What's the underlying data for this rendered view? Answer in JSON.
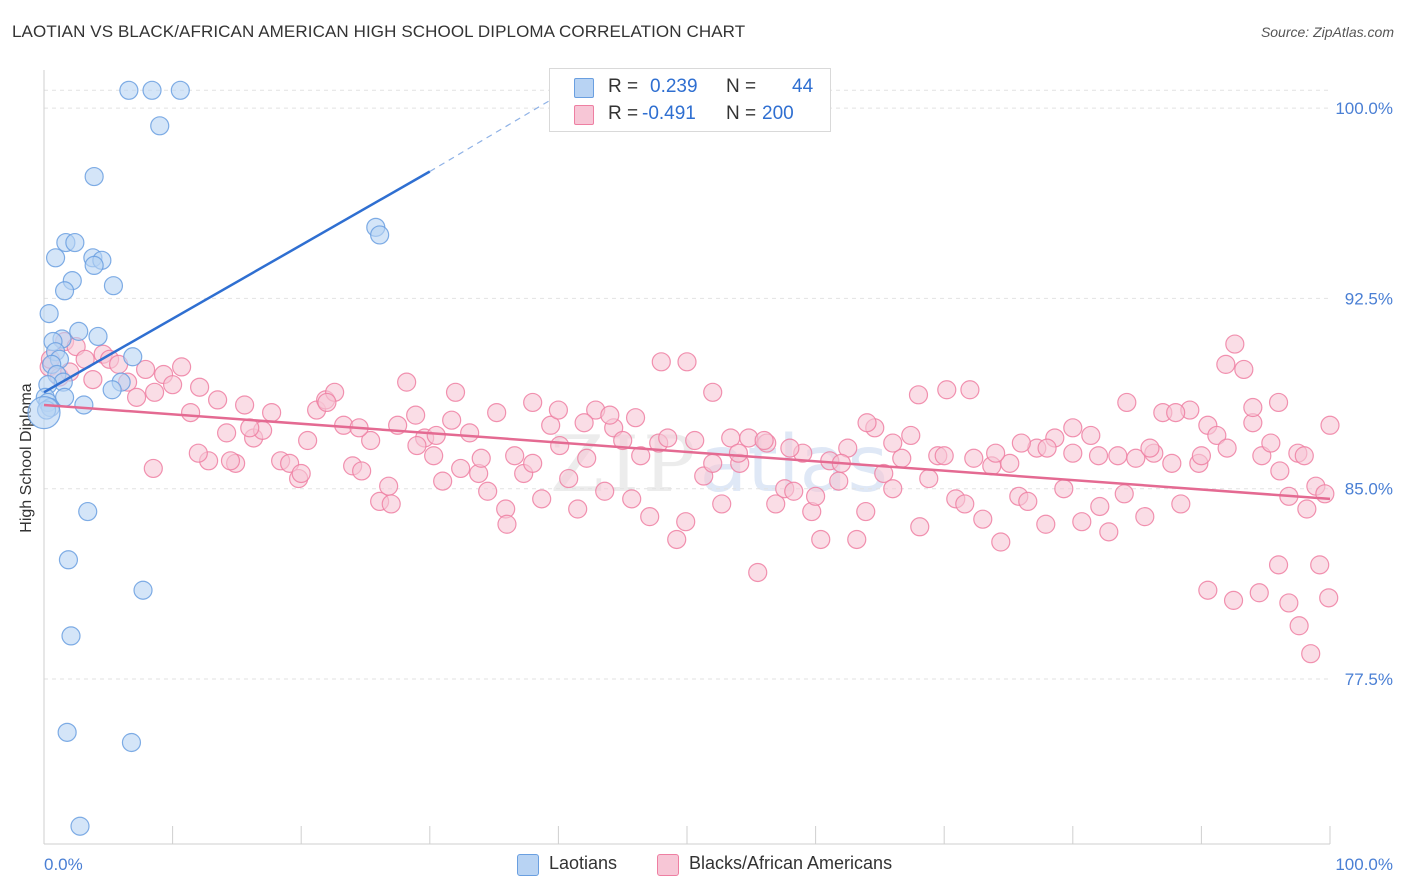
{
  "title": "LAOTIAN VS BLACK/AFRICAN AMERICAN HIGH SCHOOL DIPLOMA CORRELATION CHART",
  "source": "Source: ZipAtlas.com",
  "watermark": {
    "zip": "ZIP",
    "atlas": "atlas"
  },
  "legend": {
    "rows": [
      {
        "r_label": "R =",
        "r_value": "0.239",
        "n_label": "N =",
        "n_value": "44",
        "color": "#a9c8f0"
      },
      {
        "r_label": "R =",
        "r_value": "-0.491",
        "n_label": "N =",
        "n_value": "200",
        "color": "#f7b8cc"
      }
    ]
  },
  "bottom_legend": [
    {
      "label": "Laotians",
      "color": "#a9c8f0"
    },
    {
      "label": "Blacks/African Americans",
      "color": "#f7b8cc"
    }
  ],
  "chart_data": {
    "type": "scatter",
    "title": "LAOTIAN VS BLACK/AFRICAN AMERICAN HIGH SCHOOL DIPLOMA CORRELATION CHART",
    "xlabel": "",
    "ylabel": "High School Diploma",
    "xlim": [
      0,
      100
    ],
    "ylim": [
      71.0,
      101.5
    ],
    "x_tick_labels": [
      "0.0%",
      "100.0%"
    ],
    "y_ticks": [
      77.5,
      85.0,
      92.5,
      100.0
    ],
    "y_tick_labels": [
      "77.5%",
      "85.0%",
      "92.5%",
      "100.0%"
    ],
    "grid": true,
    "legend_position": "top-center",
    "series": [
      {
        "name": "Laotians",
        "color": "#6a9fe0",
        "fill": "#b8d3f3",
        "trend": {
          "x0": 0,
          "y0": 88.8,
          "x1": 30,
          "y1": 97.5,
          "dashed_to_x": 40,
          "dashed_to_y": 100.5
        },
        "points": [
          [
            6.6,
            100.7
          ],
          [
            8.4,
            100.7
          ],
          [
            10.6,
            100.7
          ],
          [
            9,
            99.3
          ],
          [
            3.9,
            97.3
          ],
          [
            25.8,
            95.3
          ],
          [
            26.1,
            95.0
          ],
          [
            1.7,
            94.7
          ],
          [
            2.4,
            94.7
          ],
          [
            0.9,
            94.1
          ],
          [
            3.8,
            94.1
          ],
          [
            4.5,
            94.0
          ],
          [
            3.9,
            93.8
          ],
          [
            2.2,
            93.2
          ],
          [
            5.4,
            93.0
          ],
          [
            1.6,
            92.8
          ],
          [
            0.4,
            91.9
          ],
          [
            2.7,
            91.2
          ],
          [
            4.2,
            91.0
          ],
          [
            1.4,
            90.9
          ],
          [
            0.7,
            90.8
          ],
          [
            0.9,
            90.4
          ],
          [
            6.9,
            90.2
          ],
          [
            1.2,
            90.1
          ],
          [
            0.6,
            89.9
          ],
          [
            1.0,
            89.5
          ],
          [
            1.5,
            89.2
          ],
          [
            0.3,
            89.1
          ],
          [
            6.0,
            89.2
          ],
          [
            0.1,
            88.6
          ],
          [
            0.3,
            88.4
          ],
          [
            1.6,
            88.6
          ],
          [
            0.5,
            88.2
          ],
          [
            3.1,
            88.3
          ],
          [
            0.2,
            88.1
          ],
          [
            5.3,
            88.9
          ],
          [
            3.4,
            84.1
          ],
          [
            1.9,
            82.2
          ],
          [
            7.7,
            81.0
          ],
          [
            2.1,
            79.2
          ],
          [
            1.8,
            75.4
          ],
          [
            6.8,
            75.0
          ],
          [
            2.8,
            71.7
          ],
          [
            0.0,
            88.0
          ]
        ],
        "big_point_indices": [
          43
        ]
      },
      {
        "name": "Blacks/African Americans",
        "color": "#ee7fa2",
        "fill": "#f7c6d6",
        "trend": {
          "x0": 0,
          "y0": 88.3,
          "x1": 100,
          "y1": 84.6
        },
        "points": [
          [
            0.4,
            89.8
          ],
          [
            0.5,
            90.1
          ],
          [
            1.2,
            89.4
          ],
          [
            1.6,
            90.8
          ],
          [
            2.0,
            89.6
          ],
          [
            2.5,
            90.6
          ],
          [
            3.2,
            90.1
          ],
          [
            3.8,
            89.3
          ],
          [
            4.6,
            90.3
          ],
          [
            5.1,
            90.1
          ],
          [
            5.8,
            89.9
          ],
          [
            6.5,
            89.2
          ],
          [
            7.2,
            88.6
          ],
          [
            7.9,
            89.7
          ],
          [
            8.6,
            88.8
          ],
          [
            9.3,
            89.5
          ],
          [
            10.0,
            89.1
          ],
          [
            10.7,
            89.8
          ],
          [
            11.4,
            88.0
          ],
          [
            12.1,
            89.0
          ],
          [
            12.8,
            86.1
          ],
          [
            13.5,
            88.5
          ],
          [
            14.2,
            87.2
          ],
          [
            14.9,
            86.0
          ],
          [
            15.6,
            88.3
          ],
          [
            16.3,
            87.0
          ],
          [
            17.0,
            87.3
          ],
          [
            17.7,
            88.0
          ],
          [
            18.4,
            86.1
          ],
          [
            19.1,
            86.0
          ],
          [
            19.8,
            85.4
          ],
          [
            20.5,
            86.9
          ],
          [
            21.2,
            88.1
          ],
          [
            21.9,
            88.5
          ],
          [
            22.6,
            88.8
          ],
          [
            23.3,
            87.5
          ],
          [
            24.0,
            85.9
          ],
          [
            24.7,
            85.7
          ],
          [
            25.4,
            86.9
          ],
          [
            26.1,
            84.5
          ],
          [
            26.8,
            85.1
          ],
          [
            27.5,
            87.5
          ],
          [
            28.2,
            89.2
          ],
          [
            28.9,
            87.9
          ],
          [
            29.6,
            87.0
          ],
          [
            30.3,
            86.3
          ],
          [
            31.0,
            85.3
          ],
          [
            31.7,
            87.7
          ],
          [
            32.4,
            85.8
          ],
          [
            33.1,
            87.2
          ],
          [
            33.8,
            85.6
          ],
          [
            34.5,
            84.9
          ],
          [
            35.2,
            88.0
          ],
          [
            35.9,
            84.2
          ],
          [
            36.6,
            86.3
          ],
          [
            37.3,
            85.6
          ],
          [
            38.0,
            88.4
          ],
          [
            38.7,
            84.6
          ],
          [
            39.4,
            87.5
          ],
          [
            40.1,
            86.7
          ],
          [
            40.8,
            85.4
          ],
          [
            41.5,
            84.2
          ],
          [
            42.2,
            86.2
          ],
          [
            42.9,
            88.1
          ],
          [
            43.6,
            84.9
          ],
          [
            44.3,
            87.4
          ],
          [
            45.0,
            86.9
          ],
          [
            45.7,
            84.6
          ],
          [
            46.4,
            86.3
          ],
          [
            47.1,
            83.9
          ],
          [
            47.8,
            86.8
          ],
          [
            48.5,
            87.0
          ],
          [
            49.2,
            83.0
          ],
          [
            49.9,
            83.7
          ],
          [
            50.6,
            86.9
          ],
          [
            51.3,
            85.5
          ],
          [
            52.0,
            86.0
          ],
          [
            52.7,
            84.4
          ],
          [
            53.4,
            87.0
          ],
          [
            54.1,
            86.0
          ],
          [
            54.8,
            87.0
          ],
          [
            55.5,
            81.7
          ],
          [
            56.2,
            86.8
          ],
          [
            56.9,
            84.4
          ],
          [
            57.6,
            85.0
          ],
          [
            58.3,
            84.9
          ],
          [
            59.0,
            86.4
          ],
          [
            59.7,
            84.1
          ],
          [
            60.4,
            83.0
          ],
          [
            61.1,
            86.1
          ],
          [
            61.8,
            85.3
          ],
          [
            62.5,
            86.6
          ],
          [
            63.2,
            83.0
          ],
          [
            63.9,
            84.1
          ],
          [
            64.6,
            87.4
          ],
          [
            65.3,
            85.6
          ],
          [
            66.0,
            85.0
          ],
          [
            66.7,
            86.2
          ],
          [
            67.4,
            87.1
          ],
          [
            68.1,
            83.5
          ],
          [
            68.8,
            85.4
          ],
          [
            69.5,
            86.3
          ],
          [
            70.2,
            88.9
          ],
          [
            70.9,
            84.6
          ],
          [
            71.6,
            84.4
          ],
          [
            72.3,
            86.2
          ],
          [
            73.0,
            83.8
          ],
          [
            73.7,
            85.9
          ],
          [
            74.4,
            82.9
          ],
          [
            75.1,
            86.0
          ],
          [
            75.8,
            84.7
          ],
          [
            76.5,
            84.5
          ],
          [
            77.2,
            86.6
          ],
          [
            77.9,
            83.6
          ],
          [
            78.6,
            87.0
          ],
          [
            79.3,
            85.0
          ],
          [
            80.0,
            87.4
          ],
          [
            80.7,
            83.7
          ],
          [
            81.4,
            87.1
          ],
          [
            82.1,
            84.3
          ],
          [
            82.8,
            83.3
          ],
          [
            83.5,
            86.3
          ],
          [
            84.2,
            88.4
          ],
          [
            84.9,
            86.2
          ],
          [
            85.6,
            83.9
          ],
          [
            86.3,
            86.4
          ],
          [
            87.0,
            88.0
          ],
          [
            87.7,
            86.0
          ],
          [
            88.4,
            84.4
          ],
          [
            89.1,
            88.1
          ],
          [
            89.8,
            86.0
          ],
          [
            90.5,
            87.5
          ],
          [
            91.2,
            87.1
          ],
          [
            91.9,
            89.9
          ],
          [
            92.6,
            90.7
          ],
          [
            93.3,
            89.7
          ],
          [
            94.0,
            87.6
          ],
          [
            94.7,
            86.3
          ],
          [
            95.4,
            86.8
          ],
          [
            96.1,
            85.7
          ],
          [
            96.8,
            84.7
          ],
          [
            97.5,
            86.4
          ],
          [
            98.2,
            84.2
          ],
          [
            98.9,
            85.1
          ],
          [
            99.6,
            84.8
          ],
          [
            8.5,
            85.8
          ],
          [
            12.0,
            86.4
          ],
          [
            14.5,
            86.1
          ],
          [
            16.0,
            87.4
          ],
          [
            20.0,
            85.6
          ],
          [
            22.0,
            88.4
          ],
          [
            24.5,
            87.4
          ],
          [
            27.0,
            84.4
          ],
          [
            29.0,
            86.7
          ],
          [
            30.5,
            87.1
          ],
          [
            32.0,
            88.8
          ],
          [
            34.0,
            86.2
          ],
          [
            36.0,
            83.6
          ],
          [
            38.0,
            86.0
          ],
          [
            40.0,
            88.1
          ],
          [
            42.0,
            87.6
          ],
          [
            44.0,
            87.9
          ],
          [
            46.0,
            87.8
          ],
          [
            48.0,
            90.0
          ],
          [
            50.0,
            90.0
          ],
          [
            52.0,
            88.8
          ],
          [
            54.0,
            86.4
          ],
          [
            56.0,
            86.9
          ],
          [
            58.0,
            86.6
          ],
          [
            60.0,
            84.7
          ],
          [
            62.0,
            86.0
          ],
          [
            64.0,
            87.6
          ],
          [
            66.0,
            86.8
          ],
          [
            68.0,
            88.7
          ],
          [
            70.0,
            86.3
          ],
          [
            72.0,
            88.9
          ],
          [
            74.0,
            86.4
          ],
          [
            76.0,
            86.8
          ],
          [
            78.0,
            86.6
          ],
          [
            80.0,
            86.4
          ],
          [
            82.0,
            86.3
          ],
          [
            84.0,
            84.8
          ],
          [
            86.0,
            86.6
          ],
          [
            88.0,
            88.0
          ],
          [
            90.0,
            86.3
          ],
          [
            92.0,
            86.6
          ],
          [
            94.0,
            88.2
          ],
          [
            96.0,
            88.4
          ],
          [
            98.0,
            86.3
          ],
          [
            90.5,
            81.0
          ],
          [
            92.5,
            80.6
          ],
          [
            94.5,
            80.9
          ],
          [
            96.0,
            82.0
          ],
          [
            96.8,
            80.5
          ],
          [
            97.6,
            79.6
          ],
          [
            98.5,
            78.5
          ],
          [
            99.2,
            82.0
          ],
          [
            99.9,
            80.7
          ],
          [
            100.0,
            87.5
          ]
        ]
      }
    ]
  }
}
